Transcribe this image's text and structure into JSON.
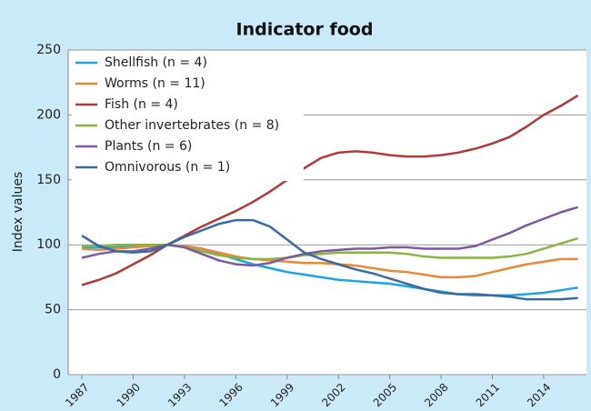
{
  "chart_data": {
    "type": "line",
    "title": "Indicator food",
    "ylabel": "Index values",
    "x": [
      1987,
      1988,
      1989,
      1990,
      1991,
      1992,
      1993,
      1994,
      1995,
      1996,
      1997,
      1998,
      1999,
      2000,
      2001,
      2002,
      2003,
      2004,
      2005,
      2006,
      2007,
      2008,
      2009,
      2010,
      2011,
      2012,
      2013,
      2014,
      2015,
      2016
    ],
    "series": [
      {
        "name": "Shellfish (n = 4)",
        "color": "#1aa7dc",
        "values": [
          98,
          98,
          98,
          99,
          100,
          100,
          99,
          97,
          93,
          89,
          85,
          82,
          79,
          77,
          75,
          73,
          72,
          71,
          70,
          68,
          66,
          64,
          62,
          61,
          61,
          61,
          62,
          63,
          65,
          67
        ]
      },
      {
        "name": "Worms (n = 11)",
        "color": "#e8883a",
        "values": [
          97,
          96,
          97,
          98,
          99,
          100,
          99,
          97,
          94,
          91,
          89,
          88,
          87,
          86,
          86,
          85,
          84,
          82,
          80,
          79,
          77,
          75,
          75,
          76,
          79,
          82,
          85,
          87,
          89,
          89
        ]
      },
      {
        "name": "Fish (n = 4)",
        "color": "#b0393b",
        "values": [
          69,
          73,
          78,
          85,
          92,
          100,
          107,
          114,
          120,
          126,
          133,
          141,
          150,
          159,
          167,
          171,
          172,
          171,
          169,
          168,
          168,
          169,
          171,
          174,
          178,
          183,
          191,
          200,
          207,
          215
        ]
      },
      {
        "name": "Other invertebrates (n = 8)",
        "color": "#8ab446",
        "values": [
          99,
          99,
          100,
          100,
          100,
          100,
          98,
          95,
          92,
          90,
          89,
          89,
          90,
          92,
          93,
          94,
          94,
          94,
          94,
          93,
          91,
          90,
          90,
          90,
          90,
          91,
          93,
          97,
          101,
          105
        ]
      },
      {
        "name": "Plants (n = 6)",
        "color": "#7b5a9e",
        "values": [
          90,
          93,
          95,
          95,
          97,
          100,
          98,
          93,
          88,
          85,
          84,
          86,
          90,
          93,
          95,
          96,
          97,
          97,
          98,
          98,
          97,
          97,
          97,
          99,
          104,
          109,
          115,
          120,
          125,
          129
        ]
      },
      {
        "name": "Omnivorous (n = 1)",
        "color": "#3d6a9e",
        "values": [
          107,
          99,
          95,
          94,
          95,
          100,
          106,
          111,
          116,
          119,
          119,
          114,
          104,
          94,
          89,
          85,
          81,
          78,
          74,
          70,
          66,
          63,
          62,
          62,
          61,
          60,
          58,
          58,
          58,
          59
        ]
      }
    ],
    "xlim": [
      1986.2,
      2016.5
    ],
    "xticks": [
      1987,
      1990,
      1993,
      1996,
      1999,
      2002,
      2005,
      2008,
      2011,
      2014
    ],
    "ylim": [
      0,
      250
    ],
    "yticks": [
      0,
      50,
      100,
      150,
      200,
      250
    ],
    "grid": true,
    "legend": "upper left"
  }
}
